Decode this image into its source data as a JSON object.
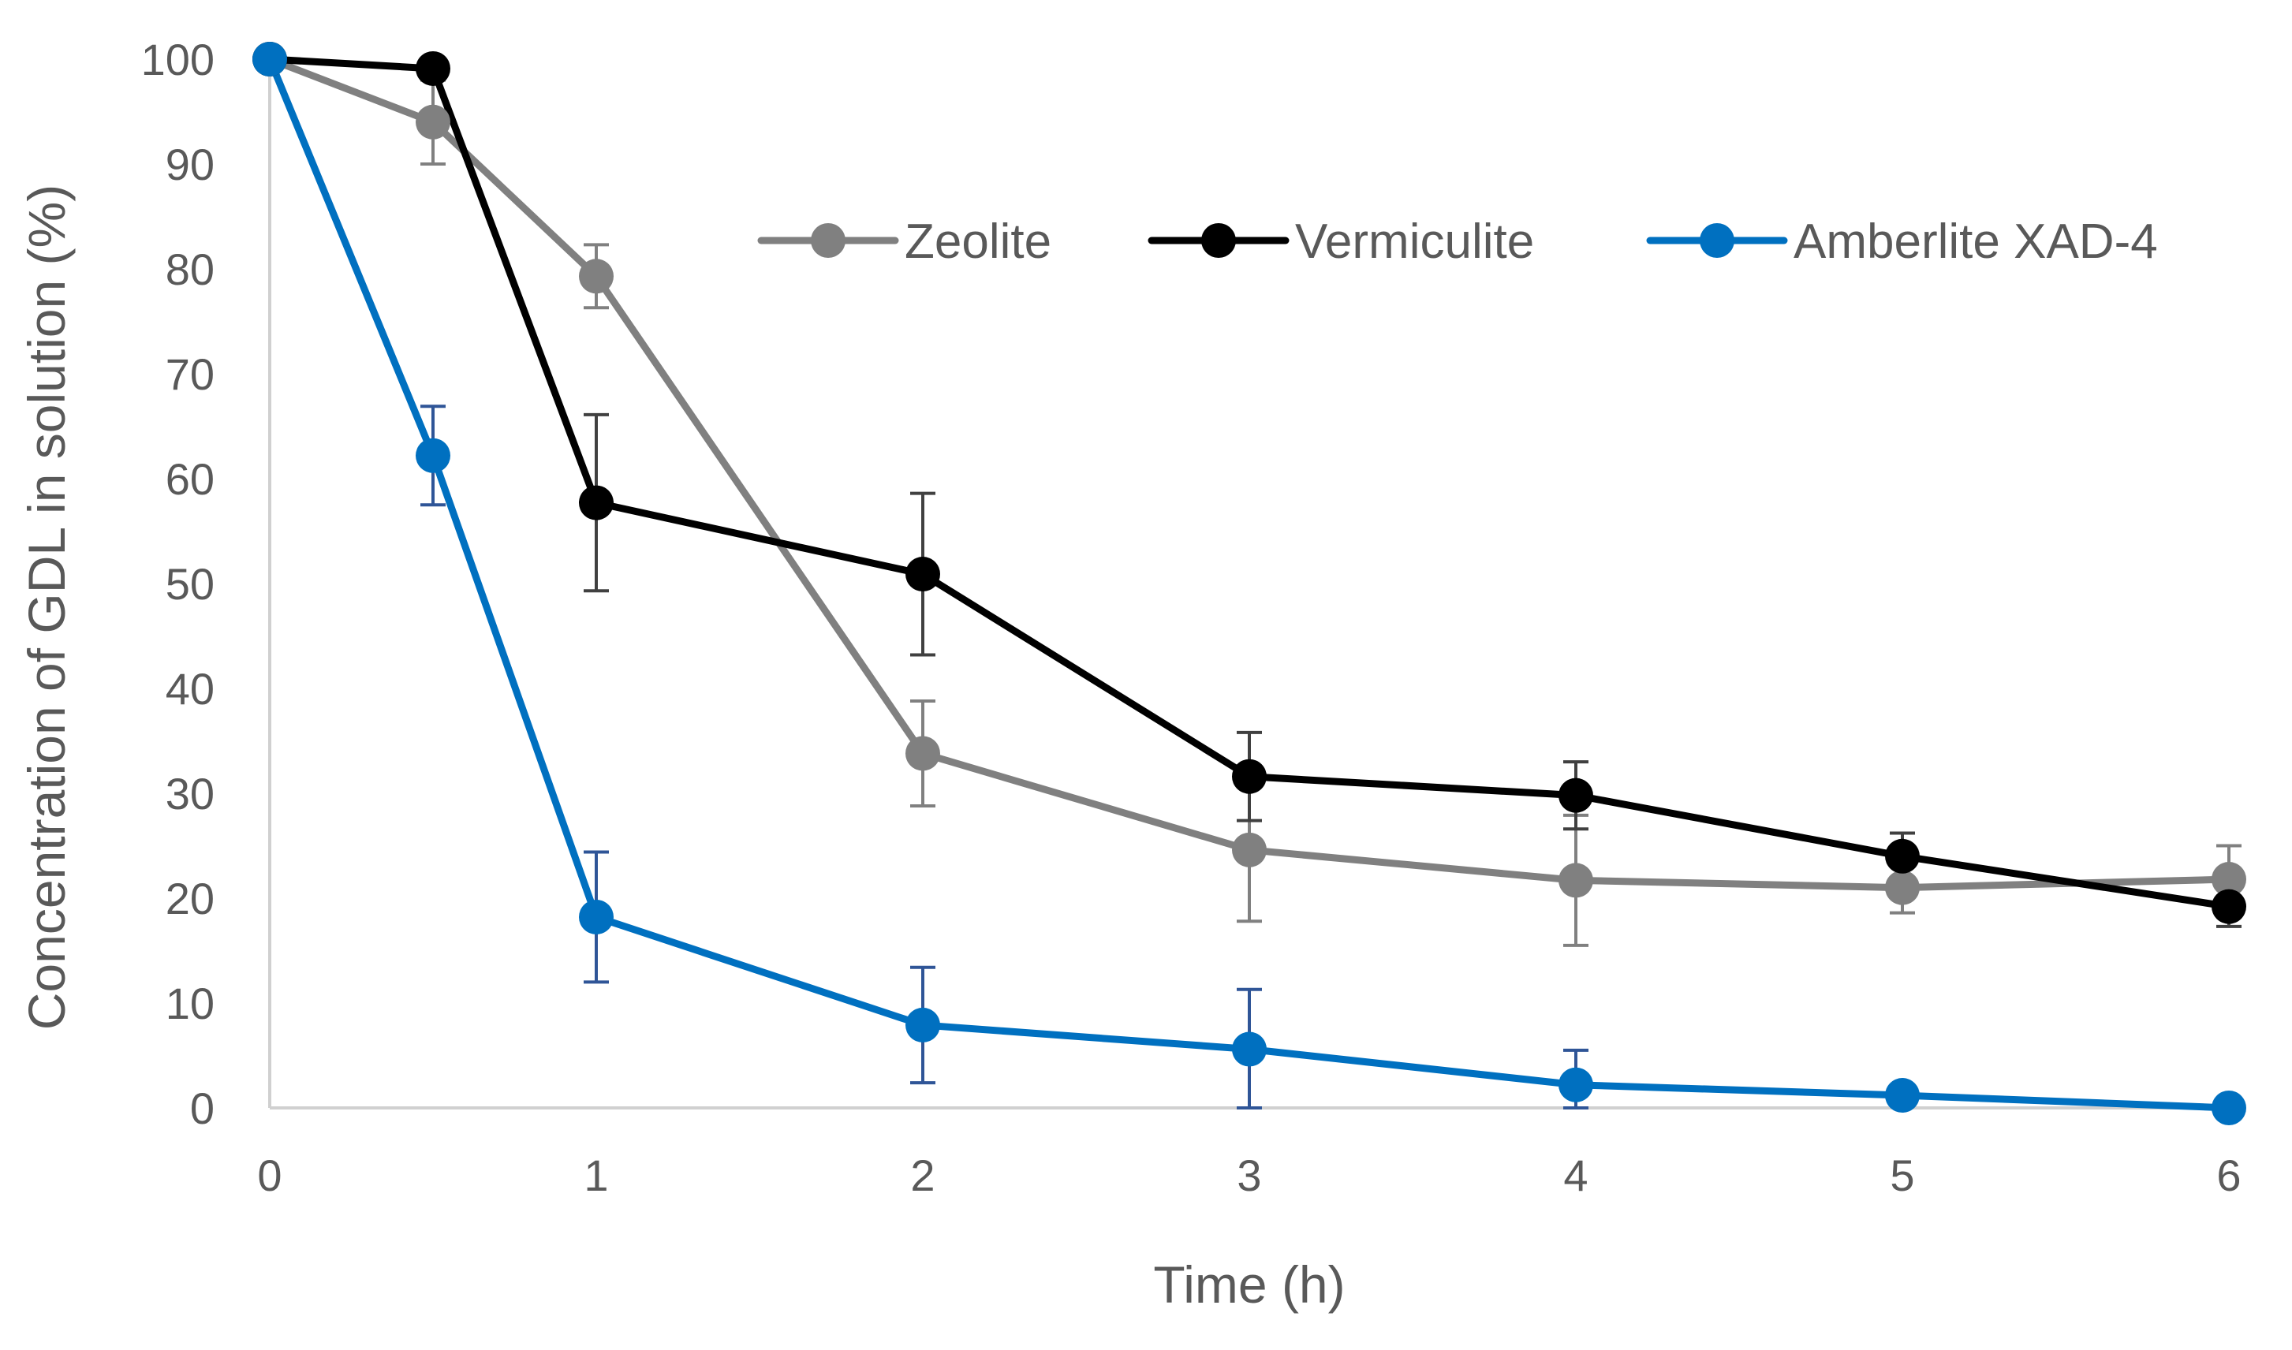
{
  "chart_data": {
    "type": "line",
    "title": "",
    "xlabel": "Time (h)",
    "ylabel": "Concentration of GDL in solution (%)",
    "xlim": [
      0,
      6
    ],
    "ylim": [
      0,
      100
    ],
    "xticks": [
      0,
      1,
      2,
      3,
      4,
      5,
      6
    ],
    "yticks": [
      0,
      10,
      20,
      30,
      40,
      50,
      60,
      70,
      80,
      90,
      100
    ],
    "grid": false,
    "legend_position": "top-right",
    "x": [
      0,
      0.5,
      1,
      2,
      3,
      4,
      5,
      6
    ],
    "series": [
      {
        "name": "Zeolite",
        "color": "#808080",
        "error_color": "#808080",
        "values": [
          100,
          94,
          79.3,
          33.8,
          24.6,
          21.7,
          21,
          21.8
        ],
        "errors": [
          0,
          4,
          3,
          5,
          6.8,
          6.2,
          2.4,
          3.2
        ]
      },
      {
        "name": "Vermiculite",
        "color": "#000000",
        "error_color": "#404040",
        "values": [
          100,
          99.1,
          57.7,
          50.9,
          31.6,
          29.8,
          24,
          19.2
        ],
        "errors": [
          0,
          0,
          8.4,
          7.7,
          4.2,
          3.2,
          2.2,
          1.9
        ]
      },
      {
        "name": "Amberlite XAD-4",
        "color": "#0070C0",
        "error_color": "#2F5597",
        "values": [
          100,
          62.2,
          18.2,
          7.9,
          5.6,
          2.2,
          1.2,
          0
        ],
        "errors": [
          0,
          4.7,
          6.2,
          5.5,
          5.7,
          3.3,
          0,
          0
        ]
      }
    ]
  }
}
